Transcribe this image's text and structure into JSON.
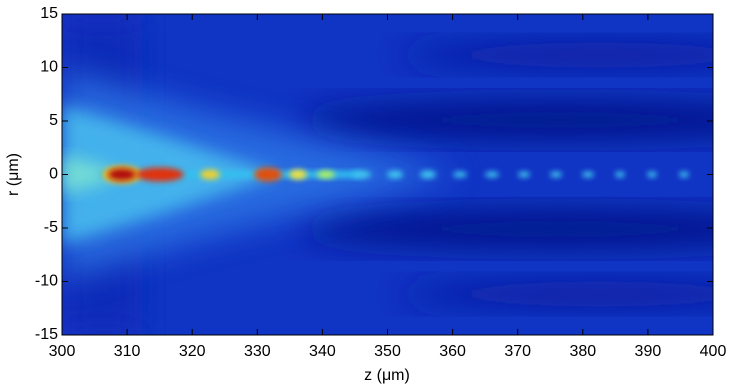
{
  "chart_data": {
    "type": "heatmap",
    "xlabel": "z (μm)",
    "ylabel": "r (μm)",
    "xlim": [
      300,
      400
    ],
    "ylim": [
      -15,
      15
    ],
    "xticks": [
      300,
      310,
      320,
      330,
      340,
      350,
      360,
      370,
      380,
      390,
      400
    ],
    "yticks": [
      -15,
      -10,
      -5,
      0,
      5,
      10,
      15
    ]
  }
}
